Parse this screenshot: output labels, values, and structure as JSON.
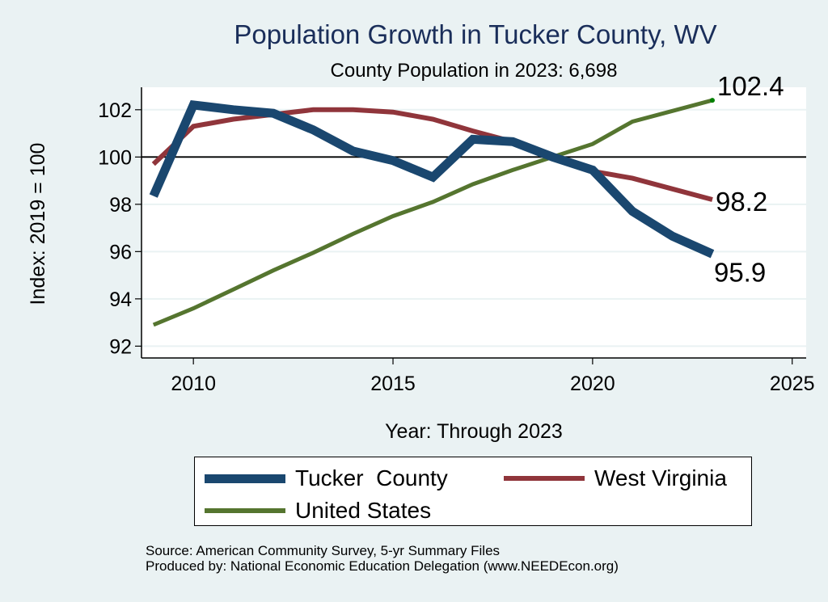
{
  "chart_data": {
    "type": "line",
    "title": "Population Growth in Tucker County, WV",
    "subtitle": "County Population in 2023: 6,698",
    "xlabel": "Year: Through 2023",
    "ylabel": "Index: 2019 = 100",
    "xlim": [
      2008.7,
      2025.35
    ],
    "ylim": [
      91.5,
      102.95
    ],
    "xticks": [
      2010,
      2015,
      2020,
      2025
    ],
    "yticks": [
      92,
      94,
      96,
      98,
      100,
      102
    ],
    "reference_line": 100,
    "grid": true,
    "legend_position": "bottom",
    "x": [
      2009,
      2010,
      2011,
      2012,
      2013,
      2014,
      2015,
      2016,
      2017,
      2018,
      2019,
      2020,
      2021,
      2022,
      2023
    ],
    "series": [
      {
        "name": "Tucker  County",
        "color": "#1a476f",
        "values": [
          98.35,
          102.2,
          102.0,
          101.85,
          101.15,
          100.25,
          99.85,
          99.15,
          100.75,
          100.65,
          100.0,
          99.45,
          97.7,
          96.65,
          95.9
        ],
        "end_label": "95.9"
      },
      {
        "name": "West Virginia",
        "color": "#90353b",
        "values": [
          99.7,
          101.3,
          101.6,
          101.8,
          102.0,
          102.0,
          101.9,
          101.6,
          101.1,
          100.65,
          100.0,
          99.4,
          99.1,
          98.65,
          98.2
        ],
        "end_label": "98.2"
      },
      {
        "name": "United States",
        "color": "#55752f",
        "values": [
          92.9,
          93.6,
          94.4,
          95.2,
          95.95,
          96.75,
          97.5,
          98.1,
          98.85,
          99.45,
          100.0,
          100.55,
          101.5,
          101.95,
          102.4
        ],
        "end_label": "102.4"
      }
    ],
    "notes": [
      "Source: American Community Survey, 5-yr Summary Files",
      "Produced by: National Economic Education Delegation (www.NEEDEcon.org)"
    ]
  }
}
